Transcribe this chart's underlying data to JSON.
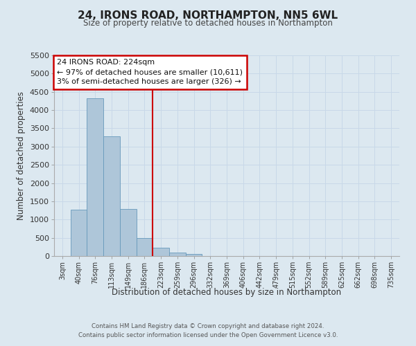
{
  "title": "24, IRONS ROAD, NORTHAMPTON, NN5 6WL",
  "subtitle": "Size of property relative to detached houses in Northampton",
  "xlabel": "Distribution of detached houses by size in Northampton",
  "ylabel": "Number of detached properties",
  "bar_labels": [
    "3sqm",
    "40sqm",
    "76sqm",
    "113sqm",
    "149sqm",
    "186sqm",
    "223sqm",
    "259sqm",
    "296sqm",
    "332sqm",
    "369sqm",
    "406sqm",
    "442sqm",
    "479sqm",
    "515sqm",
    "552sqm",
    "589sqm",
    "625sqm",
    "662sqm",
    "698sqm",
    "735sqm"
  ],
  "bar_values": [
    0,
    1270,
    4330,
    3290,
    1290,
    490,
    230,
    95,
    50,
    0,
    0,
    0,
    0,
    0,
    0,
    0,
    0,
    0,
    0,
    0,
    0
  ],
  "bar_color": "#aec6d9",
  "bar_edge_color": "#6699bb",
  "vline_x_idx": 6,
  "vline_color": "#cc0000",
  "ylim": [
    0,
    5500
  ],
  "yticks": [
    0,
    500,
    1000,
    1500,
    2000,
    2500,
    3000,
    3500,
    4000,
    4500,
    5000,
    5500
  ],
  "annotation_title": "24 IRONS ROAD: 224sqm",
  "annotation_line1": "← 97% of detached houses are smaller (10,611)",
  "annotation_line2": "3% of semi-detached houses are larger (326) →",
  "annotation_box_color": "#ffffff",
  "annotation_box_edge": "#cc0000",
  "grid_color": "#c8d8e8",
  "bg_color": "#dce8f0",
  "footer1": "Contains HM Land Registry data © Crown copyright and database right 2024.",
  "footer2": "Contains public sector information licensed under the Open Government Licence v3.0."
}
